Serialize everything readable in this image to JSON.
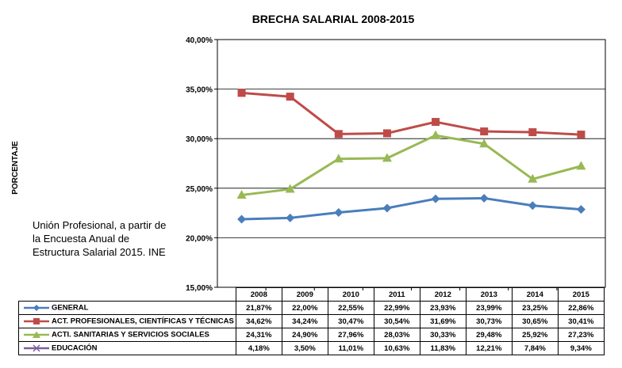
{
  "chart_data": {
    "type": "line",
    "title": "BRECHA SALARIAL 2008-2015",
    "xlabel": "",
    "ylabel": "PORCENTAJE",
    "categories": [
      "2008",
      "2009",
      "2010",
      "2011",
      "2012",
      "2013",
      "2014",
      "2015"
    ],
    "ylim": [
      15,
      40
    ],
    "yticks": [
      "15,00%",
      "20,00%",
      "25,00%",
      "30,00%",
      "35,00%",
      "40,00%"
    ],
    "grid": true,
    "legend": "table-below",
    "series": [
      {
        "name": "GENERAL",
        "values": [
          21.87,
          22.0,
          22.55,
          22.99,
          23.93,
          23.99,
          23.25,
          22.86
        ],
        "labels": [
          "21,87%",
          "22,00%",
          "22,55%",
          "22,99%",
          "23,93%",
          "23,99%",
          "23,25%",
          "22,86%"
        ],
        "color": "#4a7ebb",
        "marker": "diamond"
      },
      {
        "name": "ACT. PROFESIONALES, CIENTÍFICAS Y TÉCNICAS",
        "values": [
          34.62,
          34.24,
          30.47,
          30.54,
          31.69,
          30.73,
          30.65,
          30.41
        ],
        "labels": [
          "34,62%",
          "34,24%",
          "30,47%",
          "30,54%",
          "31,69%",
          "30,73%",
          "30,65%",
          "30,41%"
        ],
        "color": "#be4b48",
        "marker": "square"
      },
      {
        "name": "ACTI. SANITARIAS Y SERVICIOS SOCIALES",
        "values": [
          24.31,
          24.9,
          27.96,
          28.03,
          30.33,
          29.48,
          25.92,
          27.23
        ],
        "labels": [
          "24,31%",
          "24,90%",
          "27,96%",
          "28,03%",
          "30,33%",
          "29,48%",
          "25,92%",
          "27,23%"
        ],
        "color": "#98b954",
        "marker": "triangle"
      },
      {
        "name": "EDUCACIÓN",
        "values": [
          4.18,
          3.5,
          11.01,
          10.63,
          11.83,
          12.21,
          7.84,
          9.34
        ],
        "labels": [
          "4,18%",
          "3,50%",
          "11,01%",
          "10,63%",
          "11,83%",
          "12,21%",
          "7,84%",
          "9,34%"
        ],
        "color": "#7d60a0",
        "marker": "x"
      }
    ]
  },
  "note": "Unión Profesional,  a partir de la Encuesta  Anual de Estructura  Salarial 2015. INE"
}
